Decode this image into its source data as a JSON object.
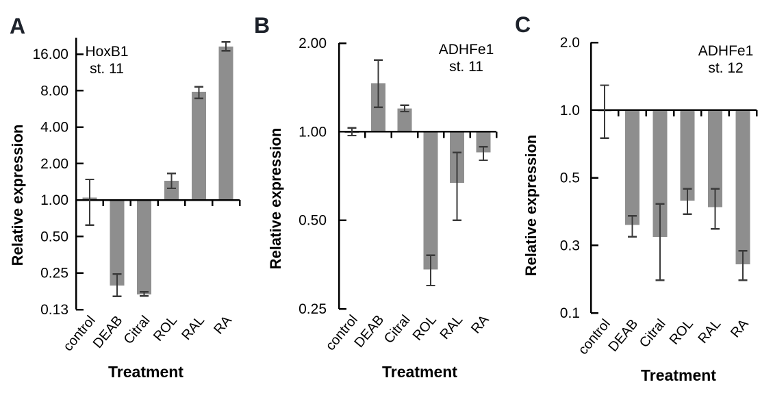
{
  "figure": {
    "background": "#ffffff",
    "description": "Three log-scale bar charts of relative gene expression after retinoid pathway treatments"
  },
  "colors": {
    "bar": "#8e8e8e",
    "error_bar": "#3a3a3a",
    "axis": "#000000",
    "text": "#000000",
    "panel_label": "#1d222b"
  },
  "chart_data": [
    {
      "type": "bar",
      "panel": "A",
      "title": "HoxB1",
      "subtitle": "st. 11",
      "ylabel": "Relative expression",
      "xlabel": "Treatment",
      "scale": "log, equally spaced labeled ticks",
      "baseline": 1.0,
      "ylim": [
        0.13,
        22
      ],
      "grid": false,
      "categories": [
        "control",
        "DEAB",
        "Citral",
        "ROL",
        "RAL",
        "RA"
      ],
      "yticks": [
        {
          "label": "16.00",
          "value": 16
        },
        {
          "label": "8.00",
          "value": 8
        },
        {
          "label": "4.00",
          "value": 4
        },
        {
          "label": "2.00",
          "value": 2
        },
        {
          "label": "1.00",
          "value": 1
        },
        {
          "label": "0.50",
          "value": 0.5
        },
        {
          "label": "0.25",
          "value": 0.25
        },
        {
          "label": "0.13",
          "value": 0.13
        }
      ],
      "bars": [
        {
          "category": "control",
          "value": 1.05,
          "err_low": 0.62,
          "err_high": 1.48
        },
        {
          "category": "DEAB",
          "value": 0.2,
          "err_low": 0.165,
          "err_high": 0.245
        },
        {
          "category": "Citral",
          "value": 0.17,
          "err_low": 0.166,
          "err_high": 0.178
        },
        {
          "category": "ROL",
          "value": 1.44,
          "err_low": 1.25,
          "err_high": 1.66
        },
        {
          "category": "RAL",
          "value": 7.8,
          "err_low": 6.9,
          "err_high": 8.6
        },
        {
          "category": "RA",
          "value": 18.5,
          "err_low": 17.0,
          "err_high": 20.2
        }
      ]
    },
    {
      "type": "bar",
      "panel": "B",
      "title": "ADHFe1",
      "subtitle": "st. 11",
      "ylabel": "Relative expression",
      "xlabel": "Treatment",
      "scale": "log, equally spaced labeled ticks",
      "baseline": 1.0,
      "ylim": [
        0.25,
        2.0
      ],
      "grid": false,
      "categories": [
        "control",
        "DEAB",
        "Citral",
        "ROL",
        "RAL",
        "RA"
      ],
      "yticks": [
        {
          "label": "2.00",
          "value": 2
        },
        {
          "label": "1.00",
          "value": 1
        },
        {
          "label": "0.50",
          "value": 0.5
        },
        {
          "label": "0.25",
          "value": 0.25
        }
      ],
      "bars": [
        {
          "category": "control",
          "value": 1.0,
          "err_low": 0.97,
          "err_high": 1.03
        },
        {
          "category": "DEAB",
          "value": 1.46,
          "err_low": 1.21,
          "err_high": 1.75
        },
        {
          "category": "Citral",
          "value": 1.2,
          "err_low": 1.17,
          "err_high": 1.23
        },
        {
          "category": "ROL",
          "value": 0.34,
          "err_low": 0.3,
          "err_high": 0.38
        },
        {
          "category": "RAL",
          "value": 0.67,
          "err_low": 0.5,
          "err_high": 0.85
        },
        {
          "category": "RA",
          "value": 0.85,
          "err_low": 0.8,
          "err_high": 0.89
        }
      ]
    },
    {
      "type": "bar",
      "panel": "C",
      "title": "ADHFe1",
      "subtitle": "st. 12",
      "ylabel": "Relative expression",
      "xlabel": "Treatment",
      "scale": "log-like, equally spaced labeled ticks",
      "baseline": 1.0,
      "ylim": [
        0.1,
        2.0
      ],
      "grid": false,
      "categories": [
        "control",
        "DEAB",
        "Citral",
        "ROL",
        "RAL",
        "RA"
      ],
      "yticks": [
        {
          "label": "2.0",
          "value": 2
        },
        {
          "label": "1.0",
          "value": 1
        },
        {
          "label": "0.5",
          "value": 0.5
        },
        {
          "label": "0.3",
          "value": 0.3
        },
        {
          "label": "0.1",
          "value": 0.1
        }
      ],
      "bars": [
        {
          "category": "control",
          "value": 1.01,
          "err_low": 0.75,
          "err_high": 1.29
        },
        {
          "category": "DEAB",
          "value": 0.35,
          "err_low": 0.32,
          "err_high": 0.375
        },
        {
          "category": "Citral",
          "value": 0.32,
          "err_low": 0.17,
          "err_high": 0.41
        },
        {
          "category": "ROL",
          "value": 0.42,
          "err_low": 0.38,
          "err_high": 0.46
        },
        {
          "category": "RAL",
          "value": 0.4,
          "err_low": 0.34,
          "err_high": 0.46
        },
        {
          "category": "RA",
          "value": 0.22,
          "err_low": 0.17,
          "err_high": 0.275
        }
      ]
    }
  ]
}
